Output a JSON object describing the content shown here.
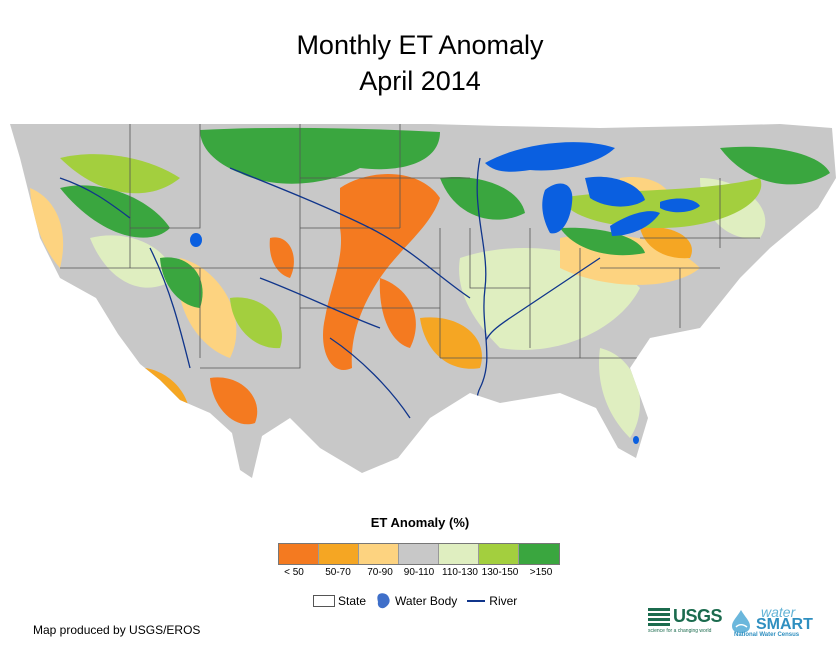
{
  "title": {
    "line1": "Monthly ET Anomaly",
    "line2": "April 2014"
  },
  "legend": {
    "title": "ET Anomaly (%)",
    "classes": [
      {
        "label": "< 50",
        "color": "#f47a20"
      },
      {
        "label": "50-70",
        "color": "#f5a623"
      },
      {
        "label": "70-90",
        "color": "#fdd380"
      },
      {
        "label": "90-110",
        "color": "#c8c8c8"
      },
      {
        "label": "110-130",
        "color": "#dfeec0"
      },
      {
        "label": "130-150",
        "color": "#a3cf3e"
      },
      {
        "label": ">150",
        "color": "#3aa63f"
      }
    ]
  },
  "keys": {
    "state": "State",
    "water": "Water Body",
    "river": "River"
  },
  "colors": {
    "water": "#0a5fe0",
    "river": "#10358b",
    "state_line": "#555555"
  },
  "credit": "Map produced by USGS/EROS",
  "logos": {
    "usgs": "USGS",
    "usgs_tagline": "science for a changing world",
    "water_top": "water",
    "water_main": "SMART",
    "water_sub": "National Water Census"
  }
}
